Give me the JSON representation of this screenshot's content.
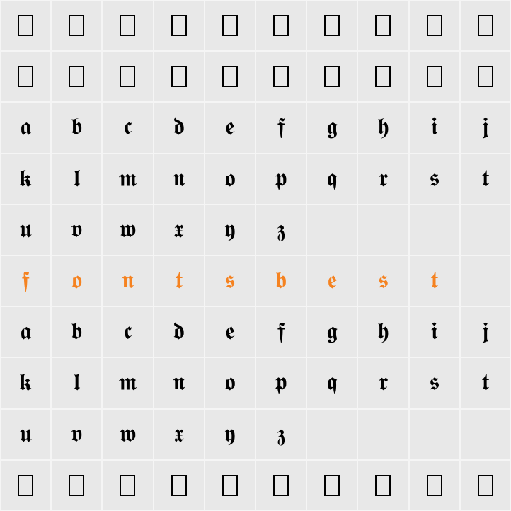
{
  "grid": {
    "type": "glyph-grid",
    "columns": 10,
    "rows": 10,
    "background_color": "#e8e8e8",
    "gridline_color": "#f5f5f5",
    "glyph_fontsize": 34,
    "default_color": "#000000",
    "highlight_color": "#f58220",
    "cells": [
      [
        {
          "g": "□",
          "t": "ph"
        },
        {
          "g": "□",
          "t": "ph"
        },
        {
          "g": "□",
          "t": "ph"
        },
        {
          "g": "□",
          "t": "ph"
        },
        {
          "g": "□",
          "t": "ph"
        },
        {
          "g": "□",
          "t": "ph"
        },
        {
          "g": "□",
          "t": "ph"
        },
        {
          "g": "□",
          "t": "ph"
        },
        {
          "g": "□",
          "t": "ph"
        },
        {
          "g": "□",
          "t": "ph"
        }
      ],
      [
        {
          "g": "□",
          "t": "ph"
        },
        {
          "g": "□",
          "t": "ph"
        },
        {
          "g": "□",
          "t": "ph"
        },
        {
          "g": "□",
          "t": "ph"
        },
        {
          "g": "□",
          "t": "ph"
        },
        {
          "g": "□",
          "t": "ph"
        },
        {
          "g": "□",
          "t": "ph"
        },
        {
          "g": "□",
          "t": "ph"
        },
        {
          "g": "□",
          "t": "ph"
        },
        {
          "g": "□",
          "t": "ph"
        }
      ],
      [
        {
          "g": "𝖆"
        },
        {
          "g": "𝖇"
        },
        {
          "g": "𝖈"
        },
        {
          "g": "𝖉"
        },
        {
          "g": "𝖊"
        },
        {
          "g": "𝖋"
        },
        {
          "g": "𝖌"
        },
        {
          "g": "𝖍"
        },
        {
          "g": "𝖎"
        },
        {
          "g": "𝖏"
        }
      ],
      [
        {
          "g": "𝖐"
        },
        {
          "g": "𝖑"
        },
        {
          "g": "𝖒"
        },
        {
          "g": "𝖓"
        },
        {
          "g": "𝖔"
        },
        {
          "g": "𝖕"
        },
        {
          "g": "𝖖"
        },
        {
          "g": "𝖗"
        },
        {
          "g": "𝖘"
        },
        {
          "g": "𝖙"
        }
      ],
      [
        {
          "g": "𝖚"
        },
        {
          "g": "𝖛"
        },
        {
          "g": "𝖜"
        },
        {
          "g": "𝖝"
        },
        {
          "g": "𝖞"
        },
        {
          "g": "𝖟"
        },
        {
          "g": ""
        },
        {
          "g": ""
        },
        {
          "g": ""
        },
        {
          "g": ""
        }
      ],
      [
        {
          "g": "𝖋",
          "hl": true
        },
        {
          "g": "𝖔",
          "hl": true
        },
        {
          "g": "𝖓",
          "hl": true
        },
        {
          "g": "𝖙",
          "hl": true
        },
        {
          "g": "𝖘",
          "hl": true
        },
        {
          "g": "𝖇",
          "hl": true
        },
        {
          "g": "𝖊",
          "hl": true
        },
        {
          "g": "𝖘",
          "hl": true
        },
        {
          "g": "𝖙",
          "hl": true
        },
        {
          "g": ""
        }
      ],
      [
        {
          "g": "𝖆"
        },
        {
          "g": "𝖇"
        },
        {
          "g": "𝖈"
        },
        {
          "g": "𝖉"
        },
        {
          "g": "𝖊"
        },
        {
          "g": "𝖋"
        },
        {
          "g": "𝖌"
        },
        {
          "g": "𝖍"
        },
        {
          "g": "𝖎"
        },
        {
          "g": "𝖏"
        }
      ],
      [
        {
          "g": "𝖐"
        },
        {
          "g": "𝖑"
        },
        {
          "g": "𝖒"
        },
        {
          "g": "𝖓"
        },
        {
          "g": "𝖔"
        },
        {
          "g": "𝖕"
        },
        {
          "g": "𝖖"
        },
        {
          "g": "𝖗"
        },
        {
          "g": "𝖘"
        },
        {
          "g": "𝖙"
        }
      ],
      [
        {
          "g": "𝖚"
        },
        {
          "g": "𝖛"
        },
        {
          "g": "𝖜"
        },
        {
          "g": "𝖝"
        },
        {
          "g": "𝖞"
        },
        {
          "g": "𝖟"
        },
        {
          "g": ""
        },
        {
          "g": ""
        },
        {
          "g": ""
        },
        {
          "g": ""
        }
      ],
      [
        {
          "g": "□",
          "t": "ph"
        },
        {
          "g": "□",
          "t": "ph"
        },
        {
          "g": "□",
          "t": "ph"
        },
        {
          "g": "□",
          "t": "ph"
        },
        {
          "g": "□",
          "t": "ph"
        },
        {
          "g": "□",
          "t": "ph"
        },
        {
          "g": "□",
          "t": "ph"
        },
        {
          "g": "□",
          "t": "ph"
        },
        {
          "g": "□",
          "t": "ph"
        },
        {
          "g": "□",
          "t": "ph"
        }
      ]
    ]
  }
}
